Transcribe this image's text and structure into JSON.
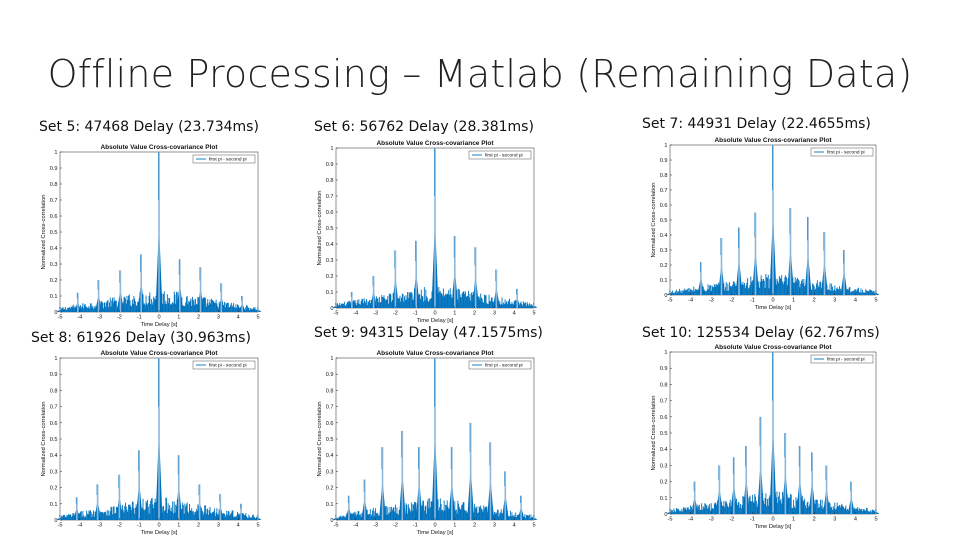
{
  "slide": {
    "title": "Offline Processing – Matlab (Remaining Data)"
  },
  "colors": {
    "plot": "#0072BD",
    "peak": "#8db8dc",
    "axis": "#262626"
  },
  "captions": [
    "Set 5: 47468 Delay (23.734ms)",
    "Set 6: 56762 Delay (28.381ms)",
    "Set 7: 44931 Delay (22.4655ms)",
    "Set 8: 61926 Delay (30.963ms)",
    "Set 9: 94315 Delay (47.1575ms)",
    "Set 10: 125534 Delay (62.767ms)"
  ],
  "chart_data": [
    {
      "type": "line",
      "title": "Absolute Value Cross-covariance Plot",
      "xlabel": "Time Delay [s]",
      "ylabel": "Normalized Cross-correlation",
      "xlim": [
        -5,
        5
      ],
      "ylim": [
        0,
        1
      ],
      "xticks": [
        "-5",
        "-4",
        "-3",
        "-2",
        "-1",
        "0",
        "1",
        "2",
        "3",
        "4",
        "5"
      ],
      "yticks": [
        "0",
        "0.1",
        "0.2",
        "0.3",
        "0.4",
        "0.5",
        "0.6",
        "0.7",
        "0.8",
        "0.9",
        "1"
      ],
      "legend": "first pi - second pi",
      "x": [
        -5,
        -4.1,
        -3.05,
        -1.95,
        -0.9,
        0,
        1.05,
        2.1,
        3.15,
        4.2,
        5
      ],
      "series": [
        {
          "name": "first pi - second pi",
          "values": [
            0.03,
            0.12,
            0.2,
            0.26,
            0.36,
            1.0,
            0.33,
            0.28,
            0.18,
            0.1,
            0.03
          ]
        }
      ]
    },
    {
      "type": "line",
      "title": "Absolute Value Cross-covariance Plot",
      "xlabel": "Time Delay [s]",
      "ylabel": "Normalized Cross-correlation",
      "xlim": [
        -5,
        5
      ],
      "ylim": [
        0,
        1
      ],
      "xticks": [
        "-5",
        "-4",
        "-3",
        "-2",
        "-1",
        "0",
        "1",
        "2",
        "3",
        "4",
        "5"
      ],
      "yticks": [
        "0",
        "0.1",
        "0.2",
        "0.3",
        "0.4",
        "0.5",
        "0.6",
        "0.7",
        "0.8",
        "0.9",
        "1"
      ],
      "legend": "first pi - second pi",
      "x": [
        -5,
        -4.2,
        -3.1,
        -2.0,
        -0.95,
        0,
        1.0,
        2.05,
        3.1,
        4.15,
        5
      ],
      "series": [
        {
          "name": "first pi - second pi",
          "values": [
            0.03,
            0.1,
            0.2,
            0.36,
            0.42,
            1.0,
            0.45,
            0.38,
            0.24,
            0.12,
            0.03
          ]
        }
      ]
    },
    {
      "type": "line",
      "title": "Absolute Value Cross-covariance Plot",
      "xlabel": "Time Delay [s]",
      "ylabel": "Normalized Cross-correlation",
      "xlim": [
        -5,
        5
      ],
      "ylim": [
        0,
        1
      ],
      "xticks": [
        "-5",
        "-4",
        "-3",
        "-2",
        "-1",
        "0",
        "1",
        "2",
        "3",
        "4",
        "5"
      ],
      "yticks": [
        "0",
        "0.1",
        "0.2",
        "0.3",
        "0.4",
        "0.5",
        "0.6",
        "0.7",
        "0.8",
        "0.9",
        "1"
      ],
      "legend": "first pi - second pi",
      "x": [
        -5,
        -3.5,
        -2.5,
        -1.65,
        -0.85,
        0,
        0.85,
        1.7,
        2.5,
        3.45,
        5
      ],
      "series": [
        {
          "name": "first pi - second pi",
          "values": [
            0.03,
            0.22,
            0.38,
            0.45,
            0.55,
            1.0,
            0.58,
            0.52,
            0.42,
            0.3,
            0.03
          ]
        }
      ]
    },
    {
      "type": "line",
      "title": "Absolute Value Cross-covariance Plot",
      "xlabel": "Time Delay [s]",
      "ylabel": "Normalized Cross-correlation",
      "xlim": [
        -5,
        5
      ],
      "ylim": [
        0,
        1
      ],
      "xticks": [
        "-5",
        "-4",
        "-3",
        "-2",
        "-1",
        "0",
        "1",
        "2",
        "3",
        "4",
        "5"
      ],
      "yticks": [
        "0",
        "0.1",
        "0.2",
        "0.3",
        "0.4",
        "0.5",
        "0.6",
        "0.7",
        "0.8",
        "0.9",
        "1"
      ],
      "legend": "first pi - second pi",
      "x": [
        -5,
        -4.15,
        -3.1,
        -2.0,
        -1.0,
        0,
        1.0,
        2.05,
        3.1,
        4.15,
        5
      ],
      "series": [
        {
          "name": "first pi - second pi",
          "values": [
            0.03,
            0.14,
            0.22,
            0.28,
            0.43,
            1.0,
            0.4,
            0.22,
            0.16,
            0.1,
            0.03
          ]
        }
      ]
    },
    {
      "type": "line",
      "title": "Absolute Value Cross-covariance Plot",
      "xlabel": "Time Delay [s]",
      "ylabel": "Normalized Cross-correlation",
      "xlim": [
        -5,
        5
      ],
      "ylim": [
        0,
        1
      ],
      "xticks": [
        "-5",
        "-4",
        "-3",
        "-2",
        "-1",
        "0",
        "1",
        "2",
        "3",
        "4",
        "5"
      ],
      "yticks": [
        "0",
        "0.1",
        "0.2",
        "0.3",
        "0.4",
        "0.5",
        "0.6",
        "0.7",
        "0.8",
        "0.9",
        "1"
      ],
      "legend": "first pi - second pi",
      "x": [
        -5,
        -4.35,
        -3.55,
        -2.65,
        -1.65,
        -0.8,
        0,
        0.85,
        1.8,
        2.8,
        3.55,
        4.35,
        5
      ],
      "series": [
        {
          "name": "first pi - second pi",
          "values": [
            0.03,
            0.15,
            0.25,
            0.45,
            0.55,
            0.45,
            1.0,
            0.45,
            0.6,
            0.48,
            0.3,
            0.15,
            0.03
          ]
        }
      ]
    },
    {
      "type": "line",
      "title": "Absolute Value Cross-covariance Plot",
      "xlabel": "Time Delay [s]",
      "ylabel": "Normalized Cross-correlation",
      "xlim": [
        -5,
        5
      ],
      "ylim": [
        0,
        1
      ],
      "xticks": [
        "-5",
        "-4",
        "-3",
        "-2",
        "-1",
        "0",
        "1",
        "2",
        "3",
        "4",
        "5"
      ],
      "yticks": [
        "0",
        "0.1",
        "0.2",
        "0.3",
        "0.4",
        "0.5",
        "0.6",
        "0.7",
        "0.8",
        "0.9",
        "1"
      ],
      "legend": "first pi - second pi",
      "x": [
        -5,
        -3.8,
        -2.6,
        -1.9,
        -1.3,
        -0.6,
        0,
        0.6,
        1.3,
        1.9,
        2.6,
        3.8,
        5
      ],
      "series": [
        {
          "name": "first pi - second pi",
          "values": [
            0.03,
            0.2,
            0.3,
            0.35,
            0.42,
            0.6,
            1.0,
            0.5,
            0.42,
            0.38,
            0.3,
            0.2,
            0.03
          ]
        }
      ]
    }
  ]
}
